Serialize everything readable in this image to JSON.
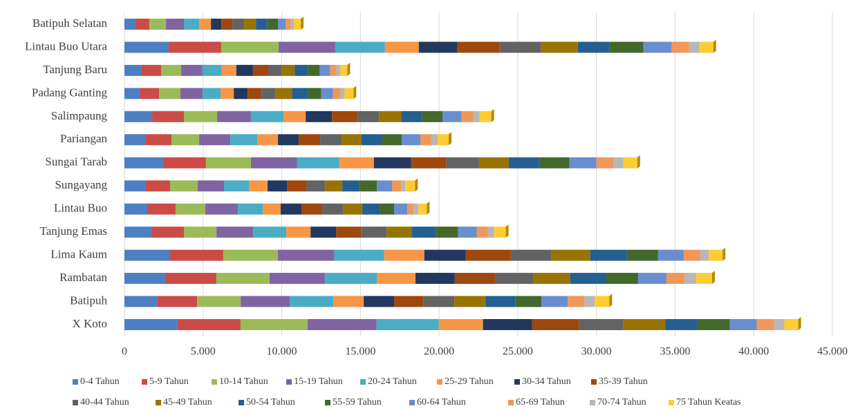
{
  "chart_data": {
    "type": "stacked_bar",
    "orientation": "horizontal",
    "categories": [
      "X Koto",
      "Batipuh",
      "Rambatan",
      "Lima Kaum",
      "Tanjung Emas",
      "Lintau Buo",
      "Sungayang",
      "Sungai Tarab",
      "Pariangan",
      "Salimpaung",
      "Padang Ganting",
      "Tanjung Baru",
      "Lintau Buo Utara",
      "Batipuh Selatan"
    ],
    "xlim": [
      0,
      45000
    ],
    "xticks": [
      0,
      {
        "value": 5000,
        "label": "5.000"
      },
      {
        "value": 10000,
        "label": "10.000"
      },
      {
        "value": 15000,
        "label": "15.000"
      },
      {
        "value": 20000,
        "label": "20.000"
      },
      {
        "value": 25000,
        "label": "25.000"
      },
      {
        "value": 30000,
        "label": "30.000"
      },
      {
        "value": 35000,
        "label": "35.000"
      },
      {
        "value": 40000,
        "label": "40.000"
      },
      {
        "value": 45000,
        "label": "45.000"
      }
    ],
    "grid": true,
    "legend": "bottom",
    "series": [
      {
        "name": "0-4 Tahun",
        "color": "#4E7FC2",
        "values": [
          3380,
          2070,
          2590,
          2900,
          1710,
          1450,
          1320,
          2460,
          1360,
          1760,
          970,
          1060,
          2810,
          700
        ]
      },
      {
        "name": "5-9 Tahun",
        "color": "#CB4B47",
        "values": [
          4000,
          2550,
          3250,
          3380,
          2070,
          1800,
          1580,
          2720,
          1630,
          2020,
          1230,
          1270,
          3340,
          880
        ]
      },
      {
        "name": "10-14 Tahun",
        "color": "#9BBB59",
        "values": [
          4260,
          2770,
          3380,
          3470,
          2070,
          1890,
          1760,
          2860,
          1760,
          2110,
          1360,
          1270,
          3650,
          1060
        ]
      },
      {
        "name": "15-19 Tahun",
        "color": "#8064A2",
        "values": [
          4390,
          3120,
          3520,
          3600,
          2330,
          2070,
          1670,
          2940,
          1980,
          2150,
          1410,
          1360,
          3600,
          1140
        ]
      },
      {
        "name": "20-24 Tahun",
        "color": "#4BACC6",
        "values": [
          3950,
          2770,
          3300,
          3160,
          2110,
          1580,
          1580,
          2680,
          1710,
          2070,
          1140,
          1230,
          3160,
          970
        ]
      },
      {
        "name": "25-29 Tahun",
        "color": "#F79646",
        "values": [
          2810,
          1930,
          2460,
          2550,
          1540,
          1140,
          1190,
          2200,
          1320,
          1410,
          840,
          920,
          2150,
          750
        ]
      },
      {
        "name": "30-34 Tahun",
        "color": "#23385F",
        "values": [
          3120,
          1930,
          2500,
          2640,
          1630,
          1320,
          1230,
          2370,
          1320,
          1670,
          880,
          1060,
          2460,
          660
        ]
      },
      {
        "name": "35-39 Tahun",
        "color": "#9E480E",
        "values": [
          2990,
          1850,
          2550,
          2860,
          1580,
          1320,
          1230,
          2240,
          1360,
          1630,
          880,
          970,
          2680,
          700
        ]
      },
      {
        "name": "40-44 Tahun",
        "color": "#636363",
        "values": [
          2810,
          1980,
          2420,
          2590,
          1630,
          1320,
          1190,
          2070,
          1360,
          1360,
          880,
          840,
          2640,
          750
        ]
      },
      {
        "name": "45-49 Tahun",
        "color": "#997300",
        "values": [
          2680,
          1980,
          2370,
          2460,
          1580,
          1230,
          1100,
          1890,
          1270,
          1410,
          1060,
          840,
          2330,
          750
        ]
      },
      {
        "name": "50-54 Tahun",
        "color": "#255E91",
        "values": [
          2020,
          1890,
          2290,
          2330,
          1540,
          1100,
          1100,
          1930,
          1320,
          1320,
          970,
          840,
          2020,
          700
        ]
      },
      {
        "name": "55-59 Tahun",
        "color": "#43682B",
        "values": [
          2070,
          1670,
          2020,
          1980,
          1410,
          920,
          1100,
          1930,
          1230,
          1320,
          880,
          750,
          2150,
          700
        ]
      },
      {
        "name": "60-64 Tahun",
        "color": "#698ED0",
        "values": [
          1710,
          1670,
          1800,
          1630,
          1190,
          840,
          970,
          1710,
          1190,
          1190,
          750,
          660,
          1800,
          480
        ]
      },
      {
        "name": "65-69 Tahun",
        "color": "#F1975A",
        "values": [
          1100,
          1060,
          1140,
          1060,
          700,
          400,
          570,
          1100,
          700,
          750,
          480,
          400,
          1100,
          310
        ]
      },
      {
        "name": "70-74 Tahun",
        "color": "#B7B7B7",
        "values": [
          660,
          660,
          750,
          530,
          400,
          310,
          260,
          620,
          400,
          400,
          260,
          260,
          660,
          220
        ]
      },
      {
        "name": "75 Tahun Keatas",
        "color": "#FFCD33",
        "values": [
          880,
          920,
          1010,
          880,
          750,
          530,
          620,
          880,
          700,
          750,
          570,
          440,
          880,
          440
        ]
      }
    ]
  }
}
